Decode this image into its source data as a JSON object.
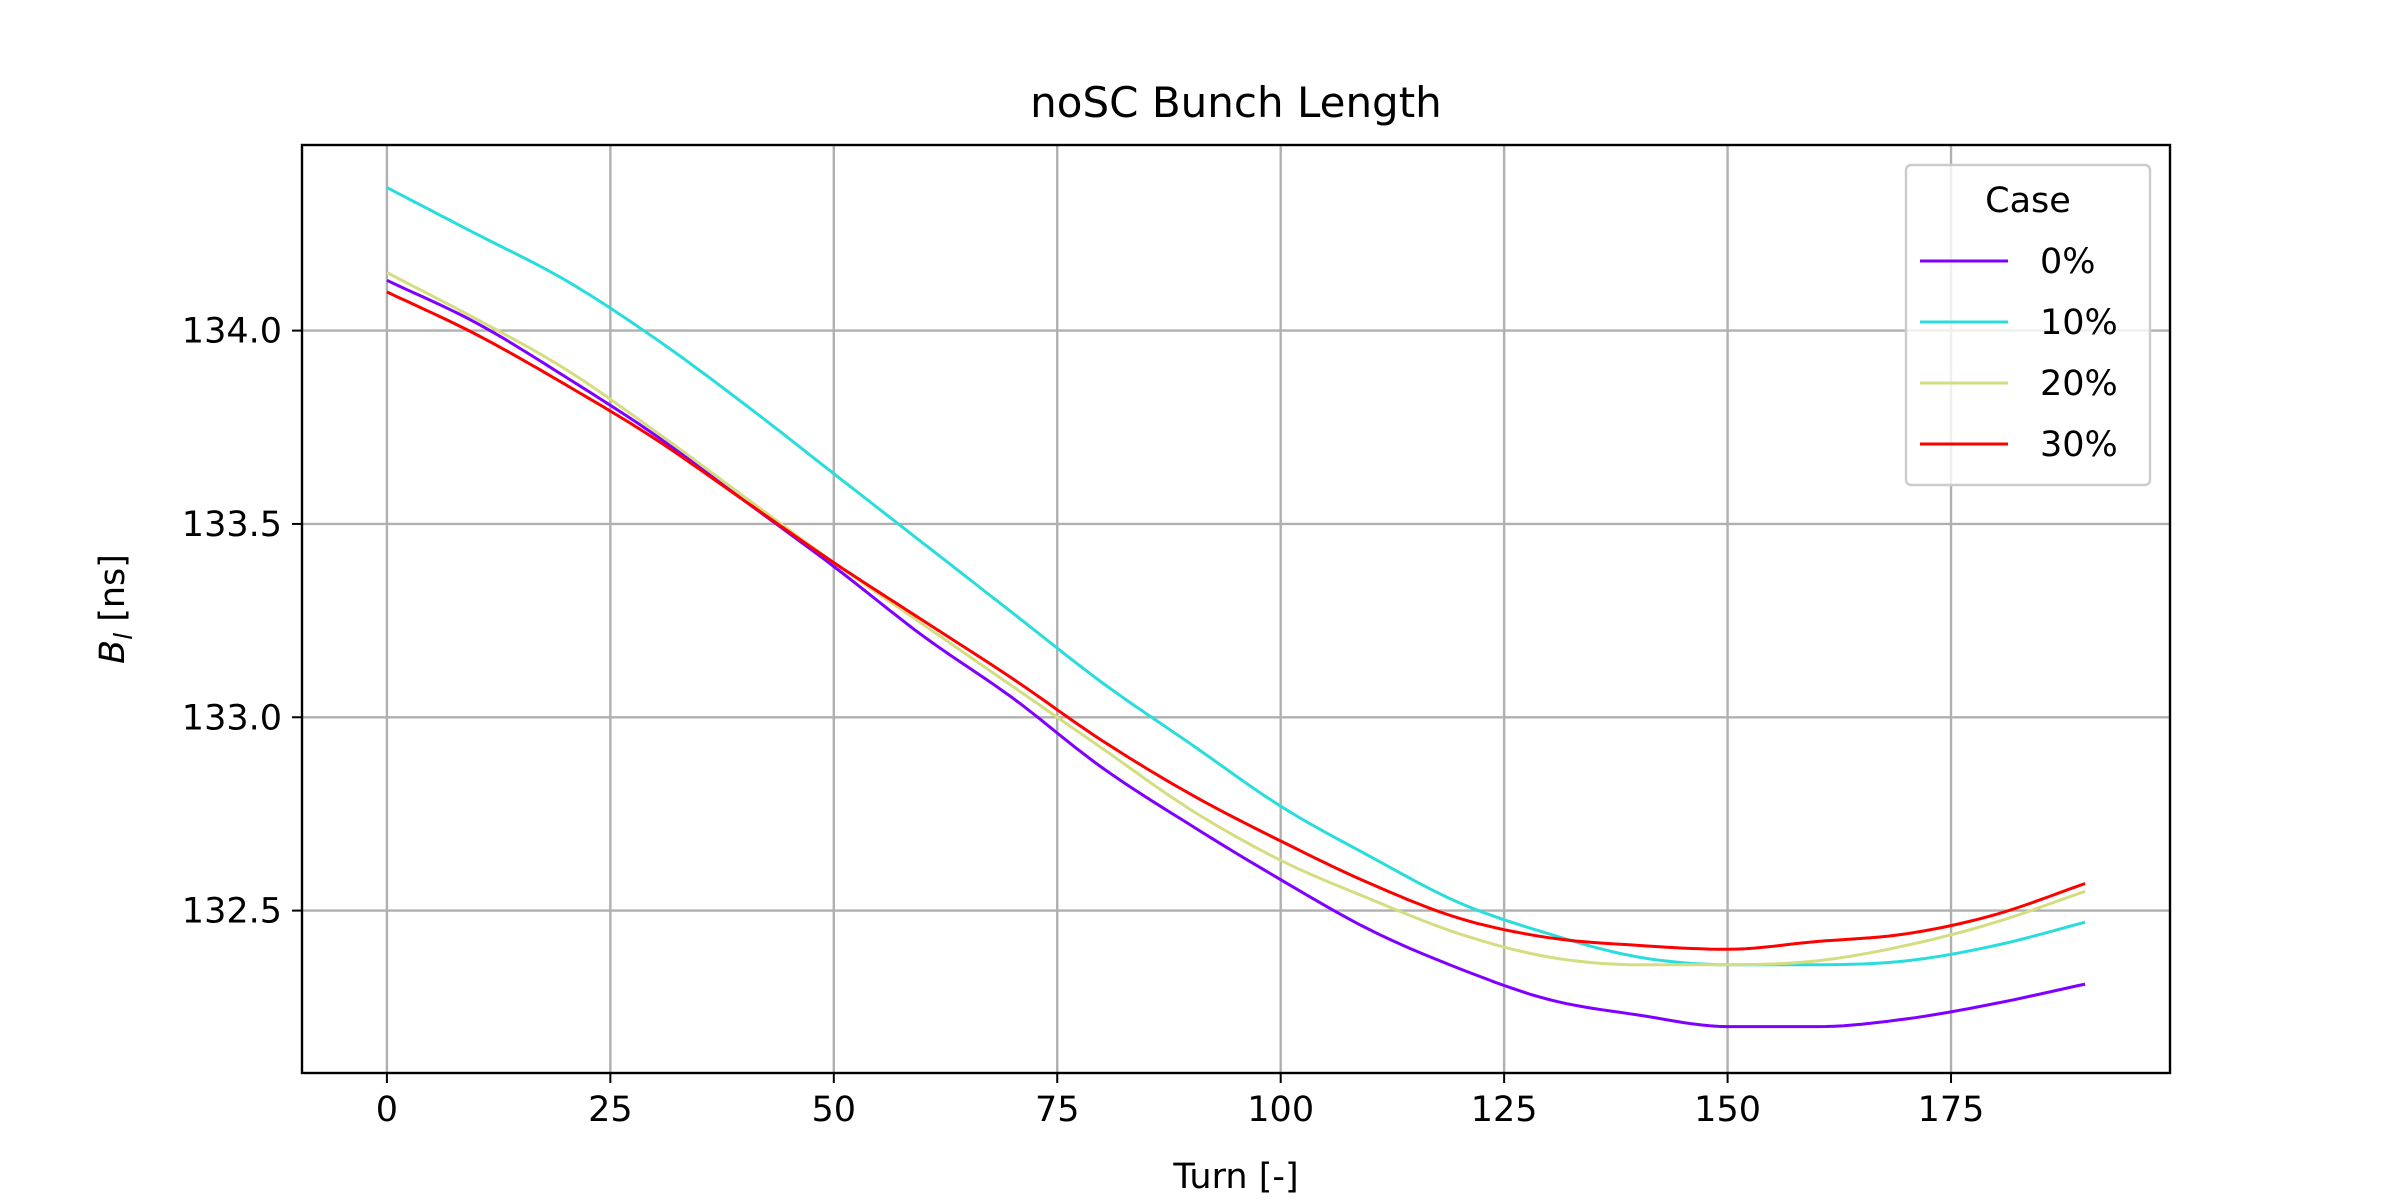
{
  "chart_data": {
    "type": "line",
    "title": "noSC Bunch Length",
    "xlabel": "Turn [-]",
    "ylabel_main": "B",
    "ylabel_sub": "l",
    "ylabel_unit": " [ns]",
    "xlim": [
      -9.5,
      199.5
    ],
    "ylim": [
      132.08,
      134.48
    ],
    "xticks": [
      0,
      25,
      50,
      75,
      100,
      125,
      150,
      175
    ],
    "xtick_labels": [
      "0",
      "25",
      "50",
      "75",
      "100",
      "125",
      "150",
      "175"
    ],
    "yticks": [
      132.5,
      133.0,
      133.5,
      134.0
    ],
    "ytick_labels": [
      "132.5",
      "133.0",
      "133.5",
      "134.0"
    ],
    "grid": true,
    "legend": {
      "title": "Case",
      "position": "top-right"
    },
    "x": [
      0,
      10,
      20,
      30,
      40,
      50,
      60,
      70,
      80,
      90,
      100,
      110,
      120,
      130,
      140,
      150,
      160,
      170,
      180,
      190
    ],
    "series": [
      {
        "name": "0%",
        "color": "#8000ff",
        "values": [
          134.13,
          134.02,
          133.88,
          133.73,
          133.56,
          133.39,
          133.21,
          133.05,
          132.87,
          132.72,
          132.58,
          132.45,
          132.35,
          132.27,
          132.23,
          132.2,
          132.2,
          132.22,
          132.26,
          132.31
        ]
      },
      {
        "name": "10%",
        "color": "#2adddd",
        "values": [
          134.37,
          134.25,
          134.13,
          133.98,
          133.81,
          133.63,
          133.45,
          133.27,
          133.09,
          132.93,
          132.77,
          132.64,
          132.52,
          132.44,
          132.38,
          132.36,
          132.36,
          132.37,
          132.41,
          132.47
        ]
      },
      {
        "name": "20%",
        "color": "#d4dd80",
        "values": [
          134.15,
          134.03,
          133.9,
          133.74,
          133.57,
          133.4,
          133.24,
          133.08,
          132.92,
          132.76,
          132.63,
          132.53,
          132.44,
          132.38,
          132.36,
          132.36,
          132.37,
          132.41,
          132.47,
          132.55
        ]
      },
      {
        "name": "30%",
        "color": "#ff0000",
        "values": [
          134.1,
          133.99,
          133.86,
          133.72,
          133.56,
          133.4,
          133.25,
          133.1,
          132.94,
          132.8,
          132.68,
          132.57,
          132.48,
          132.43,
          132.41,
          132.4,
          132.42,
          132.44,
          132.49,
          132.57
        ]
      }
    ]
  }
}
